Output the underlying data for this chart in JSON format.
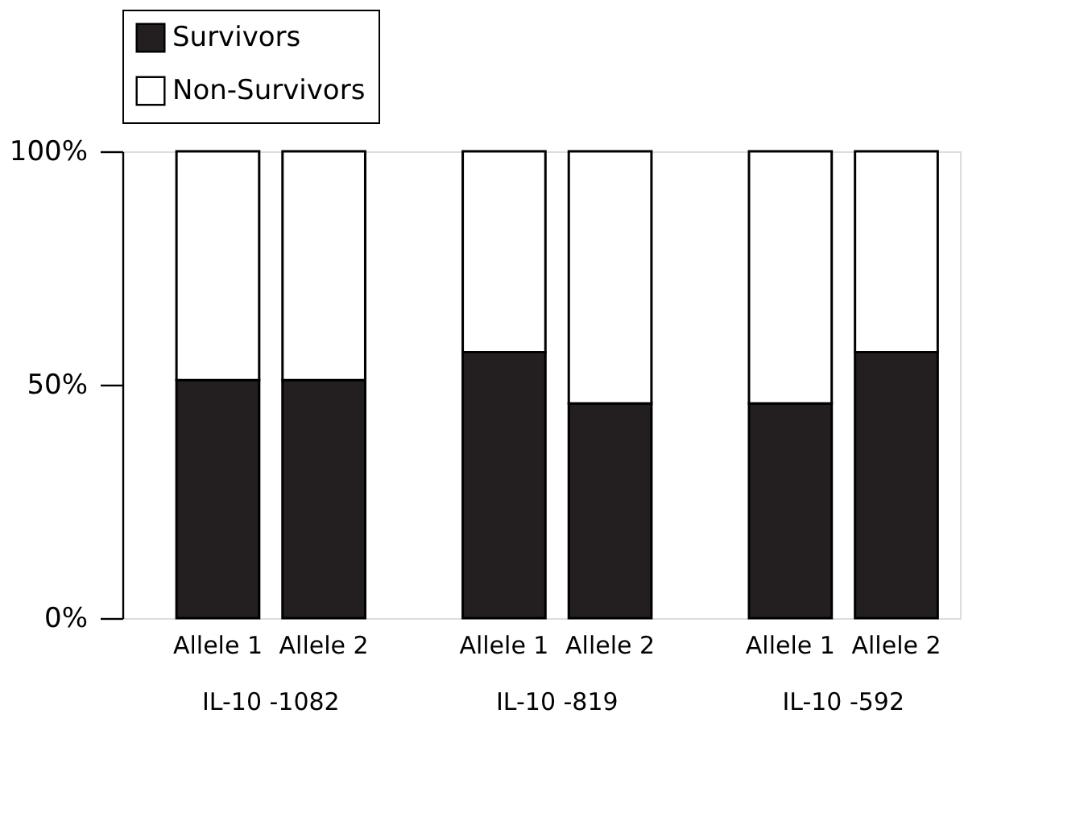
{
  "chart_data": {
    "type": "bar",
    "stacked": true,
    "categories": [
      "Allele 1",
      "Allele 2",
      "Allele 1",
      "Allele 2",
      "Allele 1",
      "Allele 2"
    ],
    "series": [
      {
        "name": "Survivors",
        "color": "#231f20",
        "values": [
          51,
          51,
          57,
          46,
          46,
          57
        ]
      },
      {
        "name": "Non-Survivors",
        "color": "#ffffff",
        "values": [
          49,
          49,
          43,
          54,
          54,
          43
        ]
      }
    ],
    "annotations": [
      "IL-10 -1082",
      "IL-10 -819",
      "IL-10 -592"
    ],
    "ylim": [
      0,
      100
    ],
    "yticks": [
      {
        "value": 0,
        "label": "0%"
      },
      {
        "value": 50,
        "label": "50%"
      },
      {
        "value": 100,
        "label": "100%"
      }
    ],
    "grid": false,
    "legend": "top"
  }
}
